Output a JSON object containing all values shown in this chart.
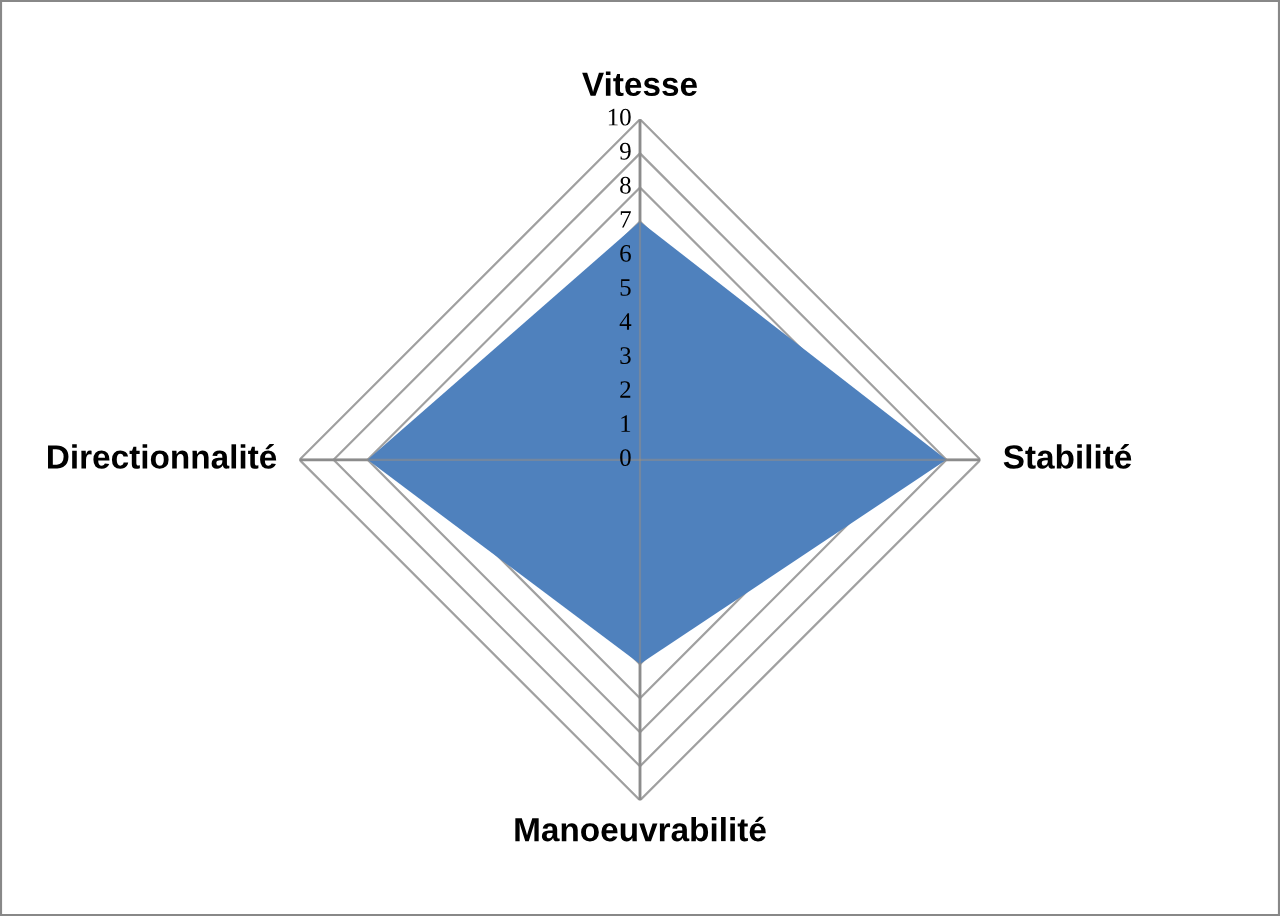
{
  "chart_data": {
    "type": "radar",
    "categories": [
      "Vitesse",
      "Stabilité",
      "Manoeuvrabilité",
      "Directionnalité"
    ],
    "series": [
      {
        "color": "#4f81bd",
        "values": [
          7,
          9,
          6,
          8
        ]
      }
    ],
    "ylim": [
      0,
      10
    ],
    "yticks": [
      0,
      1,
      2,
      3,
      4,
      5,
      6,
      7,
      8,
      9,
      10
    ],
    "grid": true,
    "legend": false
  }
}
